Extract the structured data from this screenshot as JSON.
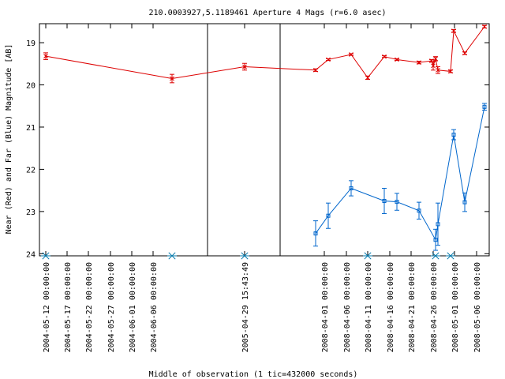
{
  "chart_data": {
    "type": "line",
    "title": "210.0003927,5.1189461   Aperture 4 Mags (r=6.0 asec)",
    "xlabel": "Middle of observation (1 tic=432000 seconds)",
    "ylabel": "Near (Red) and Far (Blue) Magnitude [AB]",
    "ylim": [
      24.05,
      18.55
    ],
    "y_inverted": true,
    "y_ticks": [
      19,
      20,
      21,
      22,
      23,
      24
    ],
    "x_tick_labels": [
      "2004-05-12 00:00:00",
      "2004-05-17 00:00:00",
      "2004-05-22 00:00:00",
      "2004-05-27 00:00:00",
      "2004-06-01 00:00:00",
      "2004-06-06 00:00:00",
      "2005-04-29 15:43:49",
      "2008-04-01 00:00:00",
      "2008-04-06 00:00:00",
      "2008-04-11 00:00:00",
      "2008-04-16 00:00:00",
      "2008-04-21 00:00:00",
      "2008-04-26 00:00:00",
      "2008-05-01 00:00:00",
      "2008-05-06 00:00:00"
    ],
    "gap_breaks": [
      {
        "before": "2005-04-29 15:43:49"
      },
      {
        "after": "2005-04-29 15:43:49"
      }
    ],
    "series": [
      {
        "color": "#dd0000",
        "marker": "x",
        "points": [
          {
            "x": "2004-05-12",
            "y": 19.32,
            "err": 0.08
          },
          {
            "x": "2004-06-10",
            "y": 19.85,
            "err": 0.1
          },
          {
            "x": "2005-04-29",
            "y": 19.57,
            "err": 0.08
          },
          {
            "x": "2008-03-29",
            "y": 19.65,
            "err": 0.03
          },
          {
            "x": "2008-04-01",
            "y": 19.4,
            "err": 0.02
          },
          {
            "x": "2008-04-07",
            "y": 19.28,
            "err": 0.02
          },
          {
            "x": "2008-04-11",
            "y": 19.83,
            "err": 0.04
          },
          {
            "x": "2008-04-15",
            "y": 19.33,
            "err": 0.02
          },
          {
            "x": "2008-04-18",
            "y": 19.4,
            "err": 0.02
          },
          {
            "x": "2008-04-23",
            "y": 19.47,
            "err": 0.03
          },
          {
            "x": "2008-04-25",
            "y": 19.43,
            "err": 0.03
          },
          {
            "x": "2008-04-25.5",
            "y": 19.55,
            "err": 0.1
          },
          {
            "x": "2008-04-26",
            "y": 19.38,
            "err": 0.05
          },
          {
            "x": "2008-04-26.5",
            "y": 19.65,
            "err": 0.08
          },
          {
            "x": "2008-04-30",
            "y": 19.68,
            "err": 0.03
          },
          {
            "x": "2008-05-01",
            "y": 18.72,
            "err": 0.03
          },
          {
            "x": "2008-05-04",
            "y": 19.25,
            "err": 0.03
          },
          {
            "x": "2008-05-10",
            "y": 18.62,
            "err": 0.03
          }
        ]
      },
      {
        "color": "#0066cc",
        "marker": "square",
        "points": [
          {
            "x": "2008-03-29",
            "y": 23.52,
            "err": 0.3
          },
          {
            "x": "2008-04-01",
            "y": 23.1,
            "err": 0.3
          },
          {
            "x": "2008-04-07",
            "y": 22.45,
            "err": 0.18
          },
          {
            "x": "2008-04-15",
            "y": 22.75,
            "err": 0.3
          },
          {
            "x": "2008-04-18",
            "y": 22.77,
            "err": 0.2
          },
          {
            "x": "2008-04-23",
            "y": 22.98,
            "err": 0.2
          },
          {
            "x": "2008-04-26",
            "y": 23.67,
            "err": 0.25
          },
          {
            "x": "2008-04-26.5",
            "y": 23.3,
            "err": 0.5
          },
          {
            "x": "2008-05-01",
            "y": 21.18,
            "err": 0.12
          },
          {
            "x": "2008-05-04",
            "y": 22.78,
            "err": 0.22
          },
          {
            "x": "2008-05-10",
            "y": 20.52,
            "err": 0.08
          }
        ]
      },
      {
        "color": "#0077aa",
        "marker": "asterisk",
        "points": [
          {
            "x": "2004-05-12",
            "y": 24.05
          },
          {
            "x": "2004-06-10",
            "y": 24.05
          },
          {
            "x": "2005-04-29",
            "y": 24.05
          },
          {
            "x": "2008-04-11",
            "y": 24.05
          },
          {
            "x": "2008-04-26",
            "y": 24.05
          },
          {
            "x": "2008-04-30",
            "y": 24.05
          }
        ]
      }
    ],
    "grid": false,
    "legend": "none"
  }
}
